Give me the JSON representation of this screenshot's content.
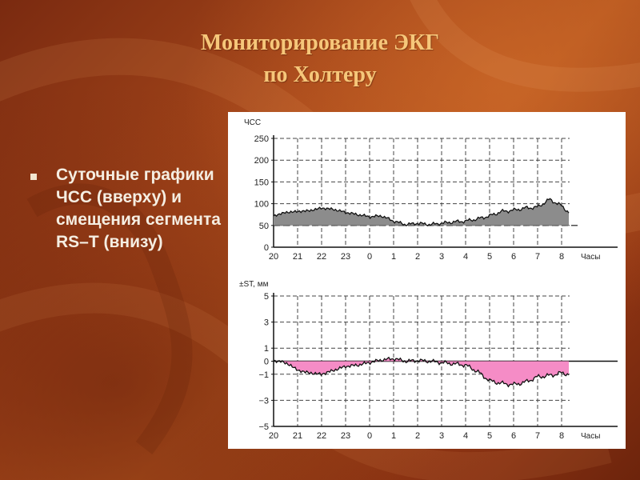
{
  "slide": {
    "title_line1": "Мониторирование ЭКГ",
    "title_line2": "по Холтеру",
    "bullet_text": "Суточные графики ЧСС (вверху) и смещения сегмента RS–T (внизу)"
  },
  "colors": {
    "title": "#f6c77a",
    "hr_fill": "#8c8c8c",
    "st_fill": "#f58cc6"
  },
  "chart_data": [
    {
      "type": "area",
      "ylabel": "ЧСС",
      "xlabel": "Часы",
      "x_ticks": [
        "20",
        "21",
        "22",
        "23",
        "0",
        "1",
        "2",
        "3",
        "4",
        "5",
        "6",
        "7",
        "8"
      ],
      "y_ticks": [
        0,
        50,
        100,
        150,
        200,
        250
      ],
      "ylim": [
        0,
        250
      ],
      "baseline": 50,
      "baseline_style": "dashed",
      "grid": true,
      "x": [
        0,
        0.5,
        1,
        1.5,
        2,
        2.5,
        3,
        3.5,
        4,
        4.5,
        5,
        5.5,
        6,
        6.5,
        7,
        7.5,
        8,
        8.5,
        9,
        9.5,
        10,
        10.5,
        11,
        11.5,
        12,
        12.3
      ],
      "values": [
        72,
        80,
        82,
        84,
        90,
        87,
        80,
        75,
        70,
        72,
        60,
        52,
        55,
        52,
        55,
        58,
        60,
        65,
        72,
        82,
        85,
        90,
        92,
        110,
        95,
        80
      ]
    },
    {
      "type": "area",
      "ylabel": "±ST, мм",
      "xlabel": "Часы",
      "x_ticks": [
        "20",
        "21",
        "22",
        "23",
        "0",
        "1",
        "2",
        "3",
        "4",
        "5",
        "6",
        "7",
        "8"
      ],
      "y_ticks": [
        "5",
        "3",
        "1",
        "0",
        "−1",
        "−3",
        "−5"
      ],
      "y_tick_values": [
        5,
        3,
        1,
        0,
        -1,
        -3,
        -5
      ],
      "ylim": [
        -5,
        5
      ],
      "baseline": 0,
      "grid": true,
      "x": [
        0,
        0.3,
        0.7,
        1,
        1.5,
        2,
        2.5,
        3,
        3.5,
        4,
        4.5,
        5,
        5.5,
        6,
        6.5,
        7,
        7.5,
        8,
        8.5,
        9,
        9.5,
        10,
        10.5,
        11,
        11.5,
        12,
        12.3
      ],
      "values": [
        0,
        0,
        -0.3,
        -0.7,
        -0.9,
        -1.0,
        -0.7,
        -0.4,
        -0.3,
        -0.1,
        0.1,
        0.2,
        0,
        0.05,
        0,
        -0.1,
        -0.2,
        -0.3,
        -0.8,
        -1.5,
        -1.7,
        -1.8,
        -1.6,
        -1.2,
        -1.1,
        -0.9,
        -1.0
      ]
    }
  ]
}
